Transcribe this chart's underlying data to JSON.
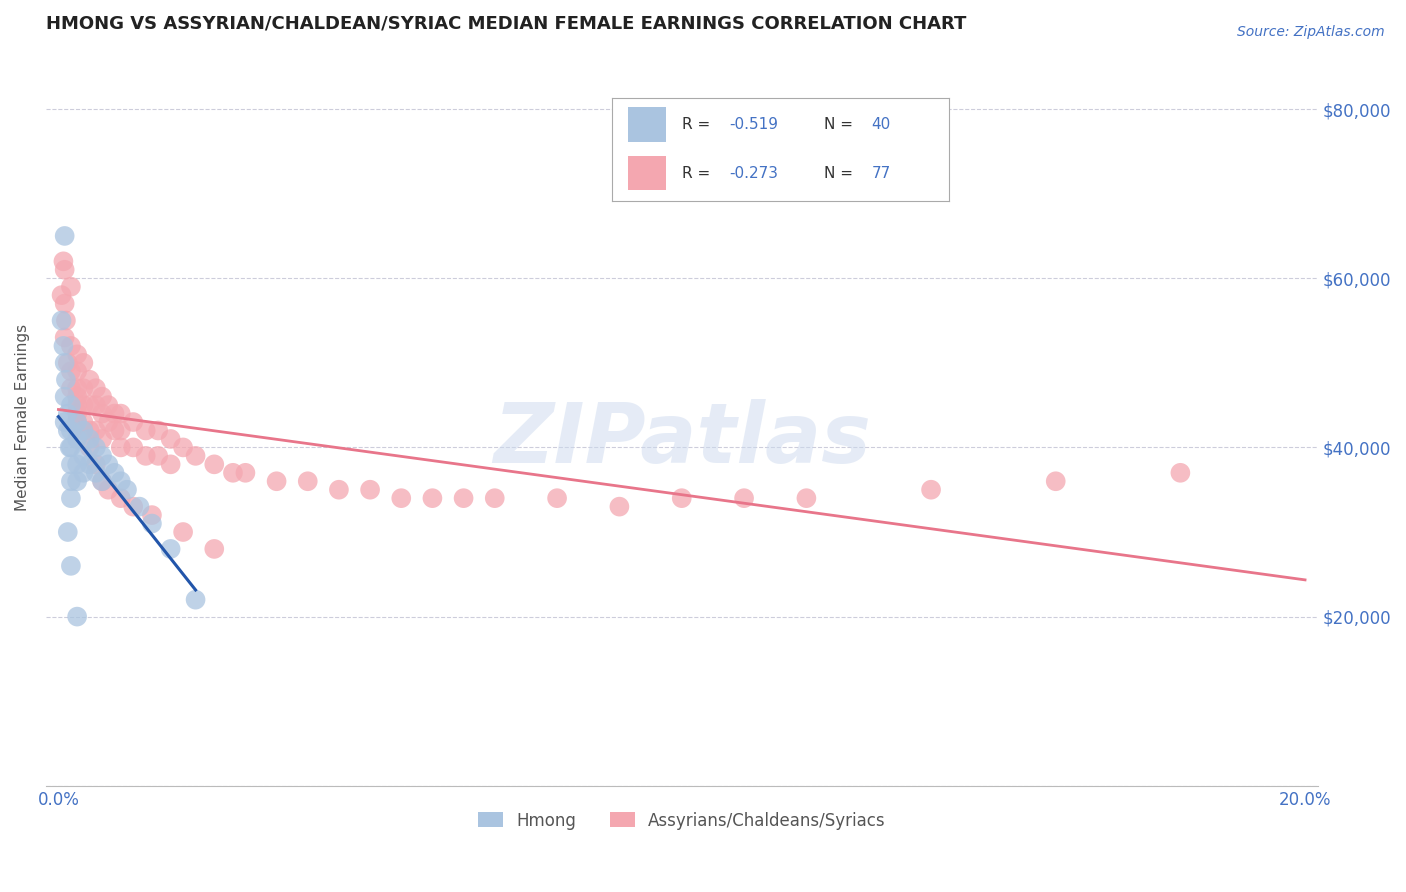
{
  "title": "HMONG VS ASSYRIAN/CHALDEAN/SYRIAC MEDIAN FEMALE EARNINGS CORRELATION CHART",
  "source": "Source: ZipAtlas.com",
  "ylabel": "Median Female Earnings",
  "watermark": "ZIPatlas",
  "hmong_label": "Hmong",
  "assyrian_label": "Assyrians/Chaldeans/Syriacs",
  "xlim": [
    -0.002,
    0.202
  ],
  "ylim": [
    0,
    87000
  ],
  "yticks": [
    0,
    20000,
    40000,
    60000,
    80000
  ],
  "ytick_labels": [
    "",
    "$20,000",
    "$40,000",
    "$60,000",
    "$80,000"
  ],
  "hmong_color": "#aac4e0",
  "hmong_line_color": "#2255aa",
  "assyrian_color": "#f4a7b0",
  "assyrian_line_color": "#e8758a",
  "title_color": "#222222",
  "axis_label_color": "#555555",
  "tick_label_color": "#4472c4",
  "source_color": "#4472c4",
  "grid_color": "#c8c8d8",
  "background_color": "#ffffff",
  "hmong_x": [
    0.0005,
    0.0008,
    0.001,
    0.001,
    0.001,
    0.0012,
    0.0015,
    0.0015,
    0.0018,
    0.002,
    0.002,
    0.002,
    0.002,
    0.002,
    0.002,
    0.003,
    0.003,
    0.003,
    0.003,
    0.004,
    0.004,
    0.004,
    0.005,
    0.005,
    0.006,
    0.006,
    0.007,
    0.007,
    0.008,
    0.009,
    0.01,
    0.011,
    0.013,
    0.015,
    0.018,
    0.022,
    0.001,
    0.0015,
    0.002,
    0.003
  ],
  "hmong_y": [
    55000,
    52000,
    50000,
    46000,
    43000,
    48000,
    44000,
    42000,
    40000,
    45000,
    42000,
    40000,
    38000,
    36000,
    34000,
    43000,
    41000,
    38000,
    36000,
    42000,
    39000,
    37000,
    41000,
    38000,
    40000,
    37000,
    39000,
    36000,
    38000,
    37000,
    36000,
    35000,
    33000,
    31000,
    28000,
    22000,
    65000,
    30000,
    26000,
    20000
  ],
  "assyrian_x": [
    0.0005,
    0.0008,
    0.001,
    0.001,
    0.0012,
    0.0015,
    0.002,
    0.002,
    0.002,
    0.003,
    0.003,
    0.003,
    0.003,
    0.003,
    0.004,
    0.004,
    0.004,
    0.004,
    0.005,
    0.005,
    0.005,
    0.006,
    0.006,
    0.006,
    0.007,
    0.007,
    0.007,
    0.008,
    0.008,
    0.009,
    0.009,
    0.01,
    0.01,
    0.01,
    0.012,
    0.012,
    0.014,
    0.014,
    0.016,
    0.016,
    0.018,
    0.018,
    0.02,
    0.022,
    0.025,
    0.028,
    0.03,
    0.035,
    0.04,
    0.045,
    0.05,
    0.055,
    0.06,
    0.065,
    0.07,
    0.08,
    0.09,
    0.1,
    0.11,
    0.12,
    0.14,
    0.16,
    0.18,
    0.001,
    0.002,
    0.003,
    0.003,
    0.004,
    0.005,
    0.006,
    0.007,
    0.008,
    0.01,
    0.012,
    0.015,
    0.02,
    0.025
  ],
  "assyrian_y": [
    58000,
    62000,
    57000,
    53000,
    55000,
    50000,
    52000,
    49000,
    47000,
    51000,
    49000,
    47000,
    45000,
    43000,
    50000,
    47000,
    45000,
    43000,
    48000,
    45000,
    42000,
    47000,
    45000,
    42000,
    46000,
    44000,
    41000,
    45000,
    43000,
    44000,
    42000,
    44000,
    42000,
    40000,
    43000,
    40000,
    42000,
    39000,
    42000,
    39000,
    41000,
    38000,
    40000,
    39000,
    38000,
    37000,
    37000,
    36000,
    36000,
    35000,
    35000,
    34000,
    34000,
    34000,
    34000,
    34000,
    33000,
    34000,
    34000,
    34000,
    35000,
    36000,
    37000,
    61000,
    59000,
    46000,
    44000,
    42000,
    40000,
    38000,
    36000,
    35000,
    34000,
    33000,
    32000,
    30000,
    28000
  ]
}
